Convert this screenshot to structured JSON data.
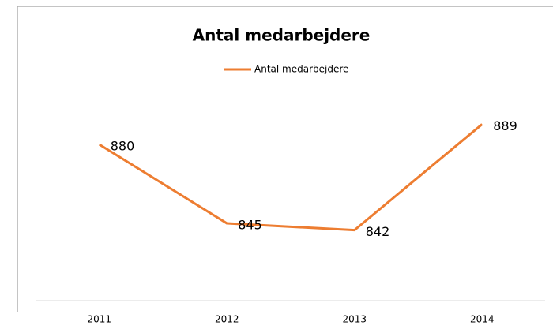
{
  "chart_data": {
    "type": "line",
    "title": "Antal medarbejdere",
    "categories": [
      "2011",
      "2012",
      "2013",
      "2014"
    ],
    "series": [
      {
        "name": "Antal medarbejdere",
        "color": "#ed7d31",
        "values": [
          880,
          845,
          842,
          889
        ]
      }
    ],
    "ylim": [
      810,
      900
    ],
    "legend": "top",
    "data_labels": true
  }
}
